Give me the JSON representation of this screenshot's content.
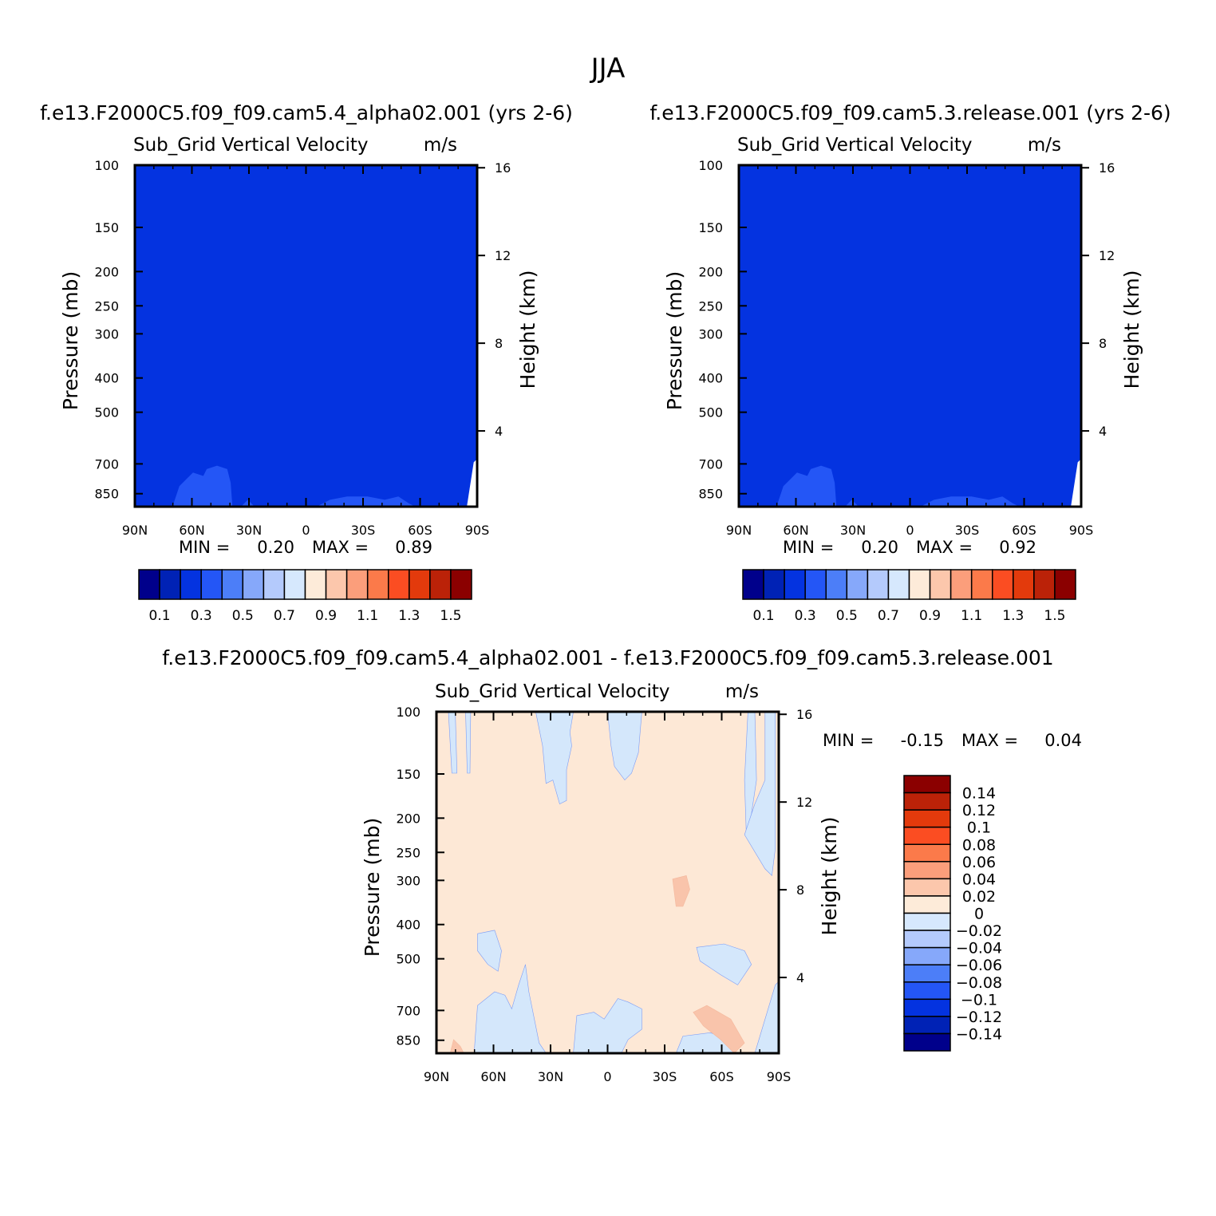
{
  "figure": {
    "season": "JJA"
  },
  "palette": {
    "blue_fill": "#0433e0",
    "light_blue": "#2456f6",
    "diff_bg": "#fde8d6",
    "diff_blue": "#d4e7fb",
    "diff_orange": "#f9c4ab",
    "contour_blue": "#7c9df6",
    "contour_orange": "#f4b79c"
  },
  "chart_data": [
    {
      "type": "contour",
      "case_title": "f.e13.F2000C5.f09_f09.cam5.4_alpha02.001 (yrs 2-6)",
      "title": "Sub_Grid Vertical Velocity",
      "units": "m/s",
      "xlabel": "",
      "ylabel": "Pressure (mb)",
      "ylabel_right": "Height (km)",
      "x_ticks": [
        "90N",
        "60N",
        "30N",
        "0",
        "30S",
        "60S",
        "90S"
      ],
      "y_ticks": [
        "100",
        "150",
        "200",
        "250",
        "300",
        "400",
        "500",
        "700",
        "850"
      ],
      "y_ticks_right": [
        "16",
        "12",
        "8",
        "4"
      ],
      "ylim": [
        100,
        925
      ],
      "min_label": "MIN =",
      "min": "0.20",
      "max_label": "MAX =",
      "max": "0.89",
      "colorbar_levels": [
        "0.1",
        "0.3",
        "0.5",
        "0.7",
        "0.9",
        "1.1",
        "1.3",
        "1.5"
      ],
      "colorbar_colors": [
        "#00008b",
        "#0022b5",
        "#0433e0",
        "#2456f6",
        "#4c7ef8",
        "#86a8fa",
        "#b4cafc",
        "#d6e8fd",
        "#fdebd9",
        "#fcc7ac",
        "#fb9e7b",
        "#fb7a4a",
        "#fb4d22",
        "#e33a0c",
        "#bb2208",
        "#8b0000"
      ]
    },
    {
      "type": "contour",
      "case_title": "f.e13.F2000C5.f09_f09.cam5.3.release.001 (yrs 2-6)",
      "title": "Sub_Grid Vertical Velocity",
      "units": "m/s",
      "xlabel": "",
      "ylabel": "Pressure (mb)",
      "ylabel_right": "Height (km)",
      "x_ticks": [
        "90N",
        "60N",
        "30N",
        "0",
        "30S",
        "60S",
        "90S"
      ],
      "y_ticks": [
        "100",
        "150",
        "200",
        "250",
        "300",
        "400",
        "500",
        "700",
        "850"
      ],
      "y_ticks_right": [
        "16",
        "12",
        "8",
        "4"
      ],
      "ylim": [
        100,
        925
      ],
      "min_label": "MIN =",
      "min": "0.20",
      "max_label": "MAX =",
      "max": "0.92",
      "colorbar_levels": [
        "0.1",
        "0.3",
        "0.5",
        "0.7",
        "0.9",
        "1.1",
        "1.3",
        "1.5"
      ],
      "colorbar_colors": [
        "#00008b",
        "#0022b5",
        "#0433e0",
        "#2456f6",
        "#4c7ef8",
        "#86a8fa",
        "#b4cafc",
        "#d6e8fd",
        "#fdebd9",
        "#fcc7ac",
        "#fb9e7b",
        "#fb7a4a",
        "#fb4d22",
        "#e33a0c",
        "#bb2208",
        "#8b0000"
      ]
    },
    {
      "type": "contour",
      "case_title": "f.e13.F2000C5.f09_f09.cam5.4_alpha02.001 - f.e13.F2000C5.f09_f09.cam5.3.release.001",
      "title": "Sub_Grid Vertical Velocity",
      "units": "m/s",
      "xlabel": "",
      "ylabel": "Pressure (mb)",
      "ylabel_right": "Height (km)",
      "x_ticks": [
        "90N",
        "60N",
        "30N",
        "0",
        "30S",
        "60S",
        "90S"
      ],
      "y_ticks": [
        "100",
        "150",
        "200",
        "250",
        "300",
        "400",
        "500",
        "700",
        "850"
      ],
      "y_ticks_right": [
        "16",
        "12",
        "8",
        "4"
      ],
      "ylim": [
        100,
        925
      ],
      "min_label": "MIN =",
      "min": "-0.15",
      "max_label": "MAX =",
      "max": "0.04",
      "colorbar_levels": [
        "0.14",
        "0.12",
        "0.1",
        "0.08",
        "0.06",
        "0.04",
        "0.02",
        "0",
        "-0.02",
        "-0.04",
        "-0.06",
        "-0.08",
        "-0.1",
        "-0.12",
        "-0.14"
      ],
      "colorbar_colors": [
        "#8b0000",
        "#bb2208",
        "#e33a0c",
        "#fb4d22",
        "#fb7a4a",
        "#fb9e7b",
        "#fcc7ac",
        "#fdebd9",
        "#d6e8fd",
        "#b4cafc",
        "#86a8fa",
        "#4c7ef8",
        "#2456f6",
        "#0433e0",
        "#0022b5",
        "#00008b"
      ]
    }
  ]
}
